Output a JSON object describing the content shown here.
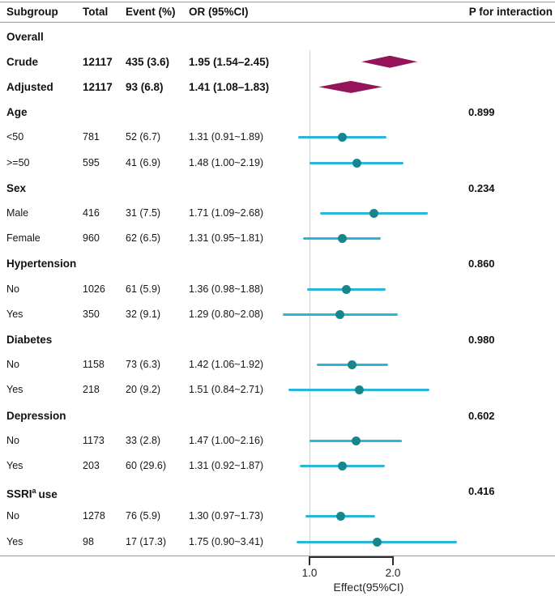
{
  "figure": {
    "columns": {
      "subgroup": "Subgroup",
      "total": "Total",
      "event": "Event (%)",
      "or": "OR (95%CI)",
      "p": "P for interaction"
    },
    "axis": {
      "ticks": [
        "1.0",
        "2.0"
      ],
      "tick_values": [
        1.0,
        2.0
      ],
      "label": "Effect(95%CI)"
    },
    "colors": {
      "diamond": "#951459",
      "ci_line": "#29b6d9",
      "point": "#17868c"
    }
  },
  "chart_data": {
    "type": "forest",
    "scale": "log",
    "x_ticks": [
      1.0,
      2.0
    ],
    "rows": [
      {
        "kind": "section",
        "label": "Overall"
      },
      {
        "kind": "summary",
        "label": "Crude",
        "total": "12117",
        "event": "435 (3.6)",
        "or_text": "1.95 (1.54–2.45)",
        "or": 1.95,
        "lo": 1.54,
        "hi": 2.45
      },
      {
        "kind": "summary",
        "label": "Adjusted",
        "total": "12117",
        "event": "93 (6.8)",
        "or_text": "1.41 (1.08–1.83)",
        "or": 1.41,
        "lo": 1.08,
        "hi": 1.83
      },
      {
        "kind": "section",
        "label": "Age",
        "p": "0.899"
      },
      {
        "kind": "item",
        "label": "<50",
        "total": "781",
        "event": "52 (6.7)",
        "or_text": "1.31 (0.91~1.89)",
        "or": 1.31,
        "lo": 0.91,
        "hi": 1.89
      },
      {
        "kind": "item",
        "label": ">=50",
        "total": "595",
        "event": "41 (6.9)",
        "or_text": "1.48 (1.00~2.19)",
        "or": 1.48,
        "lo": 1.0,
        "hi": 2.19
      },
      {
        "kind": "section",
        "label": "Sex",
        "p": "0.234"
      },
      {
        "kind": "item",
        "label": "Male",
        "total": "416",
        "event": "31 (7.5)",
        "or_text": "1.71 (1.09~2.68)",
        "or": 1.71,
        "lo": 1.09,
        "hi": 2.68
      },
      {
        "kind": "item",
        "label": "Female",
        "total": "960",
        "event": "62 (6.5)",
        "or_text": "1.31 (0.95~1.81)",
        "or": 1.31,
        "lo": 0.95,
        "hi": 1.81
      },
      {
        "kind": "section",
        "label": "Hypertension",
        "p": "0.860"
      },
      {
        "kind": "item",
        "label": "No",
        "total": "1026",
        "event": "61 (5.9)",
        "or_text": "1.36 (0.98~1.88)",
        "or": 1.36,
        "lo": 0.98,
        "hi": 1.88
      },
      {
        "kind": "item",
        "label": "Yes",
        "total": "350",
        "event": "32 (9.1)",
        "or_text": "1.29 (0.80~2.08)",
        "or": 1.29,
        "lo": 0.8,
        "hi": 2.08
      },
      {
        "kind": "section",
        "label": "Diabetes",
        "p": "0.980"
      },
      {
        "kind": "item",
        "label": "No",
        "total": "1158",
        "event": "73 (6.3)",
        "or_text": "1.42 (1.06~1.92)",
        "or": 1.42,
        "lo": 1.06,
        "hi": 1.92
      },
      {
        "kind": "item",
        "label": "Yes",
        "total": "218",
        "event": "20 (9.2)",
        "or_text": "1.51 (0.84~2.71)",
        "or": 1.51,
        "lo": 0.84,
        "hi": 2.71
      },
      {
        "kind": "section",
        "label": "Depression",
        "p": "0.602"
      },
      {
        "kind": "item",
        "label": "No",
        "total": "1173",
        "event": "33 (2.8)",
        "or_text": "1.47 (1.00~2.16)",
        "or": 1.47,
        "lo": 1.0,
        "hi": 2.16
      },
      {
        "kind": "item",
        "label": "Yes",
        "total": "203",
        "event": "60 (29.6)",
        "or_text": "1.31 (0.92~1.87)",
        "or": 1.31,
        "lo": 0.92,
        "hi": 1.87
      },
      {
        "kind": "section",
        "label": "SSRI",
        "label_sup": "a",
        "label_rest": "use",
        "p": "0.416"
      },
      {
        "kind": "item",
        "label": "No",
        "total": "1278",
        "event": "76 (5.9)",
        "or_text": "1.30 (0.97~1.73)",
        "or": 1.3,
        "lo": 0.97,
        "hi": 1.73
      },
      {
        "kind": "item",
        "label": "Yes",
        "total": "98",
        "event": "17 (17.3)",
        "or_text": "1.75 (0.90~3.41)",
        "or": 1.75,
        "lo": 0.9,
        "hi": 3.41
      }
    ]
  }
}
